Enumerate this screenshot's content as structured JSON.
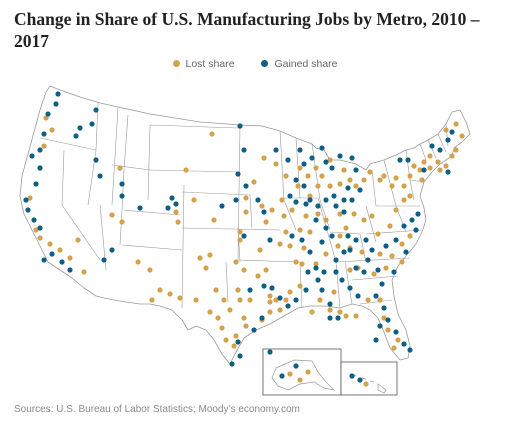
{
  "title": "Change in Share of U.S. Manufacturing Jobs by Metro, 2010 – 2017",
  "legend": {
    "lost": "Lost share",
    "gained": "Gained share"
  },
  "colors": {
    "lost": "#d4a24c",
    "gained": "#0e5f86",
    "border": "#9a9a9a",
    "land": "#ffffff"
  },
  "source": "Sources: U.S. Bureau of Labor Statistics; Moody’s economy.com"
}
